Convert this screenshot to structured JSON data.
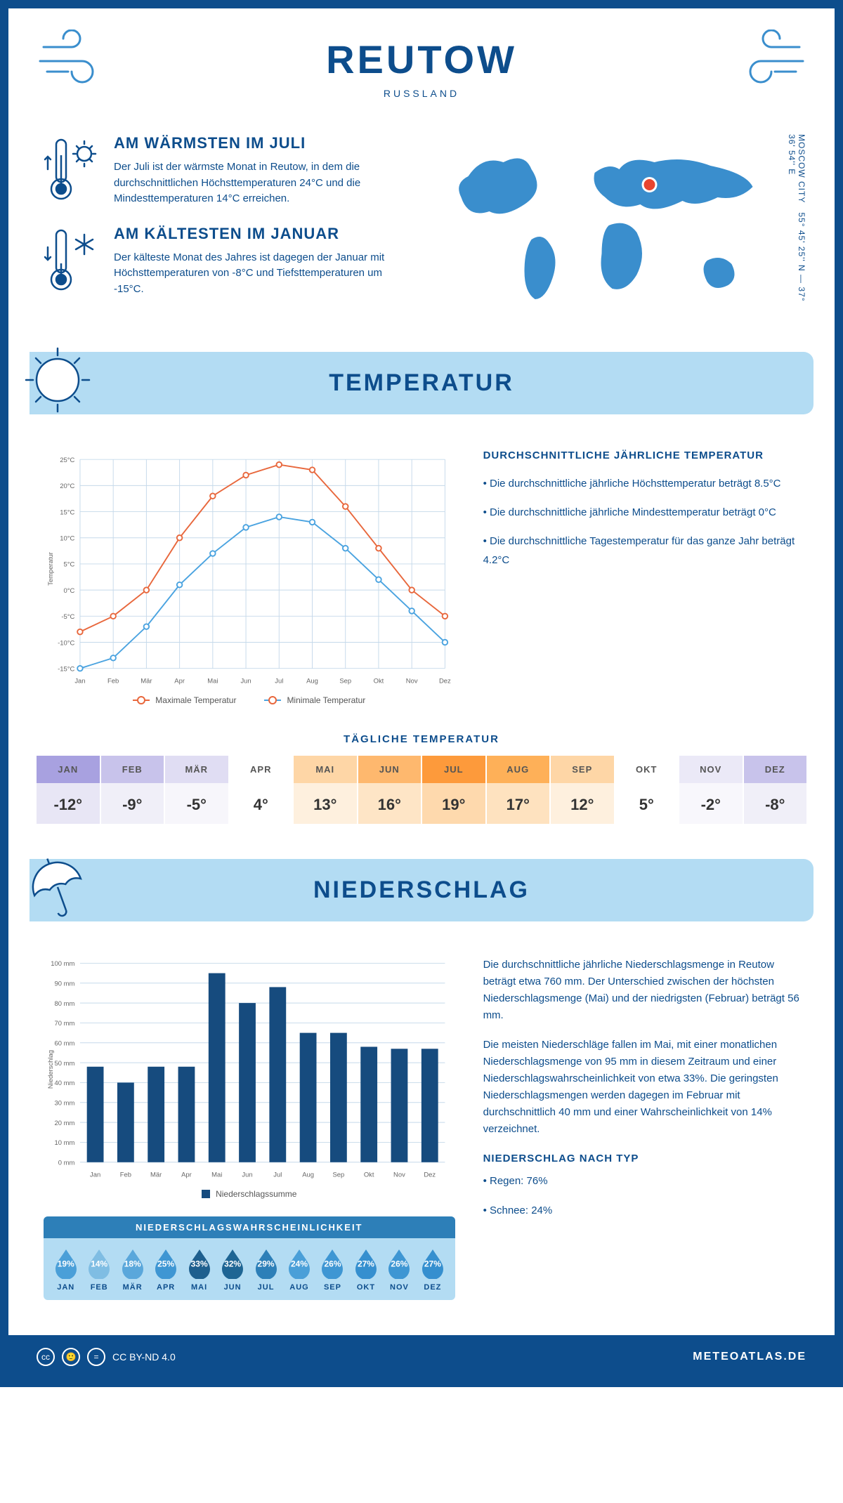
{
  "header": {
    "city": "REUTOW",
    "country": "RUSSLAND"
  },
  "coords": {
    "text": "55° 45' 25'' N — 37° 36' 54'' E",
    "subtitle": "MOSCOW CITY"
  },
  "facts": {
    "warm": {
      "title": "AM WÄRMSTEN IM JULI",
      "text": "Der Juli ist der wärmste Monat in Reutow, in dem die durchschnittlichen Höchsttemperaturen 24°C und die Mindesttemperaturen 14°C erreichen."
    },
    "cold": {
      "title": "AM KÄLTESTEN IM JANUAR",
      "text": "Der kälteste Monat des Jahres ist dagegen der Januar mit Höchsttemperaturen von -8°C und Tiefsttemperaturen um -15°C."
    }
  },
  "sections": {
    "temperature": "TEMPERATUR",
    "precipitation": "NIEDERSCHLAG"
  },
  "months": [
    "Jan",
    "Feb",
    "Mär",
    "Apr",
    "Mai",
    "Jun",
    "Jul",
    "Aug",
    "Sep",
    "Okt",
    "Nov",
    "Dez"
  ],
  "months_upper": [
    "JAN",
    "FEB",
    "MÄR",
    "APR",
    "MAI",
    "JUN",
    "JUL",
    "AUG",
    "SEP",
    "OKT",
    "NOV",
    "DEZ"
  ],
  "temp_chart": {
    "type": "line",
    "ylabel": "Temperatur",
    "ylim": [
      -15,
      25
    ],
    "ytick_step": 5,
    "max_series": {
      "label": "Maximale Temperatur",
      "color": "#e8673c",
      "values": [
        -8,
        -5,
        0,
        10,
        18,
        22,
        24,
        23,
        16,
        8,
        0,
        -5
      ]
    },
    "min_series": {
      "label": "Minimale Temperatur",
      "color": "#4aa3e0",
      "values": [
        -15,
        -13,
        -7,
        1,
        7,
        12,
        14,
        13,
        8,
        2,
        -4,
        -10
      ]
    },
    "grid_color": "#c5d9ea",
    "axis_fontsize": 10
  },
  "temp_desc": {
    "title": "DURCHSCHNITTLICHE JÄHRLICHE TEMPERATUR",
    "p1": "• Die durchschnittliche jährliche Höchsttemperatur beträgt 8.5°C",
    "p2": "• Die durchschnittliche jährliche Mindesttemperatur beträgt 0°C",
    "p3": "• Die durchschnittliche Tagestemperatur für das ganze Jahr beträgt 4.2°C"
  },
  "daily_temp": {
    "title": "TÄGLICHE TEMPERATUR",
    "values": [
      "-12°",
      "-9°",
      "-5°",
      "4°",
      "13°",
      "16°",
      "19°",
      "17°",
      "12°",
      "5°",
      "-2°",
      "-8°"
    ],
    "head_bg": [
      "#a8a1e0",
      "#c8c3eb",
      "#e0ddf3",
      "#ffffff",
      "#fed6a6",
      "#feb86e",
      "#fd9a3b",
      "#feb058",
      "#fed6a6",
      "#ffffff",
      "#ebe9f7",
      "#c8c3eb"
    ],
    "body_bg": [
      "#e8e6f5",
      "#f0eff8",
      "#f7f6fb",
      "#ffffff",
      "#fef0de",
      "#fee5c6",
      "#fed9ad",
      "#fee2bf",
      "#fef0de",
      "#ffffff",
      "#f8f7fc",
      "#f0eff8"
    ]
  },
  "precip_chart": {
    "type": "bar",
    "ylabel": "Niederschlag",
    "ylim": [
      0,
      100
    ],
    "ytick_step": 10,
    "bar_color": "#164b7e",
    "values": [
      48,
      40,
      48,
      48,
      95,
      80,
      88,
      65,
      65,
      58,
      57,
      57
    ],
    "legend": "Niederschlagssumme",
    "grid_color": "#c5d9ea"
  },
  "precip_desc": {
    "p1": "Die durchschnittliche jährliche Niederschlagsmenge in Reutow beträgt etwa 760 mm. Der Unterschied zwischen der höchsten Niederschlagsmenge (Mai) und der niedrigsten (Februar) beträgt 56 mm.",
    "p2": "Die meisten Niederschläge fallen im Mai, mit einer monatlichen Niederschlagsmenge von 95 mm in diesem Zeitraum und einer Niederschlagswahrscheinlichkeit von etwa 33%. Die geringsten Niederschlagsmengen werden dagegen im Februar mit durchschnittlich 40 mm und einer Wahrscheinlichkeit von 14% verzeichnet.",
    "type_title": "NIEDERSCHLAG NACH TYP",
    "type_rain": "• Regen: 76%",
    "type_snow": "• Schnee: 24%"
  },
  "prob": {
    "title": "NIEDERSCHLAGSWAHRSCHEINLICHKEIT",
    "values": [
      "19%",
      "14%",
      "18%",
      "25%",
      "33%",
      "32%",
      "29%",
      "24%",
      "26%",
      "27%",
      "26%",
      "27%"
    ],
    "colors": [
      "#4a9fd8",
      "#7fbde3",
      "#5aa7db",
      "#3e96d3",
      "#1e5f8e",
      "#1e6594",
      "#2d7fb8",
      "#4a9fd8",
      "#3e96d3",
      "#358fcf",
      "#3e96d3",
      "#358fcf"
    ]
  },
  "footer": {
    "license": "CC BY-ND 4.0",
    "brand": "METEOATLAS.DE"
  },
  "colors": {
    "primary": "#0d4d8c",
    "lightblue": "#b3dcf3",
    "accent": "#3a8ecd"
  }
}
